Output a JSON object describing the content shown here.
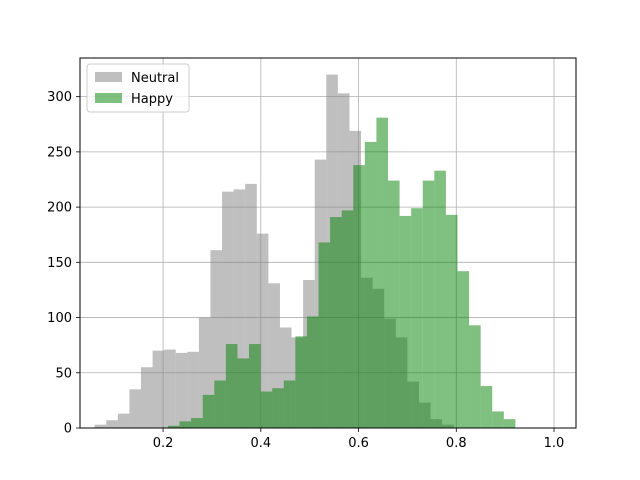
{
  "chart_data": {
    "type": "bar",
    "subtype": "overlapping-histogram",
    "title": "",
    "xlabel": "",
    "ylabel": "",
    "xlim": [
      0.03,
      1.045
    ],
    "ylim": [
      0,
      335
    ],
    "xticks": [
      0.2,
      0.4,
      0.6,
      0.8,
      1.0
    ],
    "xtick_labels": [
      "0.2",
      "0.4",
      "0.6",
      "0.8",
      "1.0"
    ],
    "yticks": [
      0,
      50,
      100,
      150,
      200,
      250,
      300
    ],
    "ytick_labels": [
      "0",
      "50",
      "100",
      "150",
      "200",
      "250",
      "300"
    ],
    "grid": true,
    "legend_position": "top-left",
    "series": [
      {
        "name": "Neutral",
        "color": "#808080",
        "alpha": 0.5,
        "bin_start": 0.06,
        "bin_width": 0.0237,
        "values": [
          3,
          7,
          13,
          35,
          55,
          70,
          71,
          68,
          69,
          100,
          161,
          214,
          216,
          221,
          176,
          131,
          91,
          82,
          134,
          243,
          320,
          303,
          269,
          136,
          126,
          99,
          82,
          42,
          23,
          8,
          3
        ]
      },
      {
        "name": "Happy",
        "color": "#008000",
        "alpha": 0.5,
        "bin_start": 0.21,
        "bin_width": 0.0237,
        "values": [
          2,
          6,
          9,
          30,
          43,
          76,
          63,
          76,
          33,
          36,
          43,
          83,
          101,
          168,
          191,
          197,
          238,
          259,
          281,
          224,
          192,
          199,
          224,
          233,
          193,
          142,
          93,
          38,
          15,
          8
        ]
      }
    ]
  }
}
